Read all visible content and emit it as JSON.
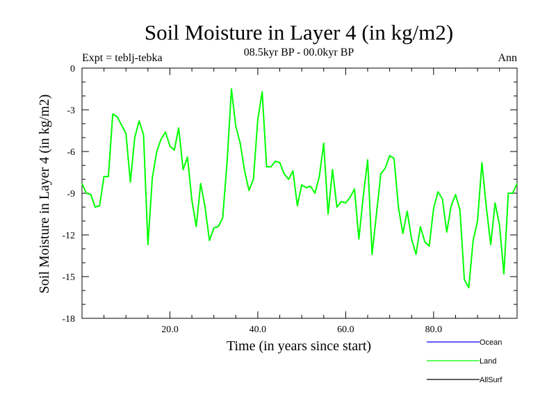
{
  "chart_data": {
    "type": "line",
    "title": "Soil Moisture in Layer 4 (in kg/m2)",
    "subtitle": "08.5kyr BP - 00.0kyr BP",
    "left_label": "Expt = teblj-tebka",
    "right_label": "Ann",
    "xlabel": "Time (in years since start)",
    "ylabel": "Soil Moisture in Layer 4 (in kg/m2)",
    "xlim": [
      0,
      99
    ],
    "ylim": [
      -18,
      0
    ],
    "x_ticks": [
      20,
      40,
      60,
      80
    ],
    "x_tick_labels": [
      "20.0",
      "40.0",
      "60.0",
      "80.0"
    ],
    "y_ticks": [
      0,
      -3,
      -6,
      -9,
      -12,
      -15,
      -18
    ],
    "y_tick_labels": [
      "0",
      "-3",
      "-6",
      "-9",
      "-12",
      "-15",
      "-18"
    ],
    "legend": [
      {
        "name": "Ocean",
        "color": "#0000ff"
      },
      {
        "name": "Land",
        "color": "#00ff00"
      },
      {
        "name": "AllSurf",
        "color": "#000000"
      }
    ],
    "series": [
      {
        "name": "Land",
        "color": "#00ff00",
        "x": [
          0,
          1,
          2,
          3,
          4,
          5,
          6,
          7,
          8,
          9,
          10,
          11,
          12,
          13,
          14,
          15,
          16,
          17,
          18,
          19,
          20,
          21,
          22,
          23,
          24,
          25,
          26,
          27,
          28,
          29,
          30,
          31,
          32,
          33,
          34,
          35,
          36,
          37,
          38,
          39,
          40,
          41,
          42,
          43,
          44,
          45,
          46,
          47,
          48,
          49,
          50,
          51,
          52,
          53,
          54,
          55,
          56,
          57,
          58,
          59,
          60,
          61,
          62,
          63,
          64,
          65,
          66,
          67,
          68,
          69,
          70,
          71,
          72,
          73,
          74,
          75,
          76,
          77,
          78,
          79,
          80,
          81,
          82,
          83,
          84,
          85,
          86,
          87,
          88,
          89,
          90,
          91,
          92,
          93,
          94,
          95,
          96,
          97,
          98,
          99
        ],
        "values": [
          -8.3,
          -9.0,
          -9.1,
          -10.0,
          -9.9,
          -7.8,
          -7.8,
          -3.3,
          -3.5,
          -4.1,
          -4.7,
          -8.2,
          -5.0,
          -3.8,
          -4.8,
          -12.7,
          -7.9,
          -6.0,
          -5.1,
          -4.6,
          -5.6,
          -5.9,
          -4.3,
          -7.3,
          -6.4,
          -9.5,
          -11.4,
          -8.3,
          -10.0,
          -12.4,
          -11.5,
          -11.4,
          -10.8,
          -6.8,
          -1.5,
          -4.2,
          -5.4,
          -7.4,
          -8.8,
          -8.0,
          -3.7,
          -1.7,
          -7.1,
          -7.1,
          -6.7,
          -6.8,
          -7.6,
          -8.0,
          -7.4,
          -9.9,
          -8.4,
          -8.6,
          -8.5,
          -9.0,
          -7.8,
          -5.4,
          -10.5,
          -7.3,
          -10.0,
          -9.6,
          -9.7,
          -9.3,
          -8.7,
          -12.3,
          -9.2,
          -6.6,
          -13.4,
          -10.5,
          -7.6,
          -7.2,
          -6.3,
          -6.5,
          -10.0,
          -11.9,
          -10.3,
          -12.3,
          -13.4,
          -11.4,
          -12.5,
          -12.8,
          -10.1,
          -8.9,
          -9.4,
          -11.8,
          -9.9,
          -9.1,
          -10.2,
          -15.2,
          -15.8,
          -12.4,
          -11.0,
          -6.8,
          -10.0,
          -12.7,
          -9.7,
          -11.3,
          -14.8,
          -9.0,
          -9.0,
          -8.3
        ]
      }
    ]
  }
}
